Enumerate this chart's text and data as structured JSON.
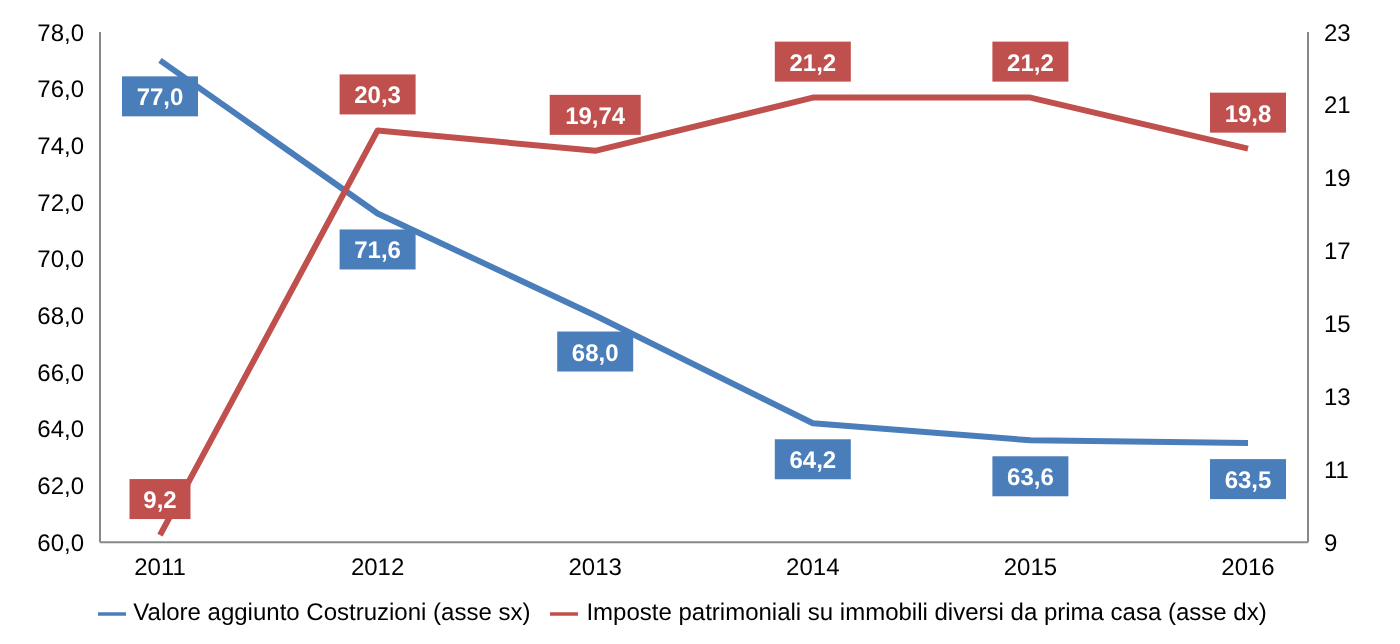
{
  "chart_data": {
    "type": "line",
    "categories": [
      "2011",
      "2012",
      "2013",
      "2014",
      "2015",
      "2016"
    ],
    "series": [
      {
        "name": "Valore aggiunto Costruzioni (asse sx)",
        "color": "#4a7ebb",
        "values": [
          77.0,
          71.6,
          68.0,
          64.2,
          63.6,
          63.5
        ],
        "value_labels": [
          "77,0",
          "71,6",
          "68,0",
          "64,2",
          "63,6",
          "63,5"
        ]
      },
      {
        "name": "Imposte patrimoniali su immobili diversi da prima casa (asse dx)",
        "color": "#c0504d",
        "axis": "y2",
        "values": [
          9.2,
          20.3,
          19.74,
          21.2,
          21.2,
          19.8
        ],
        "value_labels": [
          "9,2",
          "20,3",
          "19,74",
          "21,2",
          "21,2",
          "19,8"
        ]
      }
    ],
    "ylim": [
      60,
      78
    ],
    "yticks": [
      {
        "value": 60,
        "label": "60,0"
      },
      {
        "value": 62,
        "label": "62,0"
      },
      {
        "value": 64,
        "label": "64,0"
      },
      {
        "value": 66,
        "label": "66,0"
      },
      {
        "value": 68,
        "label": "68,0"
      },
      {
        "value": 70,
        "label": "70,0"
      },
      {
        "value": 72,
        "label": "72,0"
      },
      {
        "value": 74,
        "label": "74,0"
      },
      {
        "value": 76,
        "label": "76,0"
      },
      {
        "value": 78,
        "label": "78,0"
      }
    ],
    "y2lim": [
      9,
      23
    ],
    "y2ticks": [
      9,
      11,
      13,
      15,
      17,
      19,
      21,
      23
    ],
    "grid": false,
    "legend": "bottom",
    "line_style": "solid"
  }
}
